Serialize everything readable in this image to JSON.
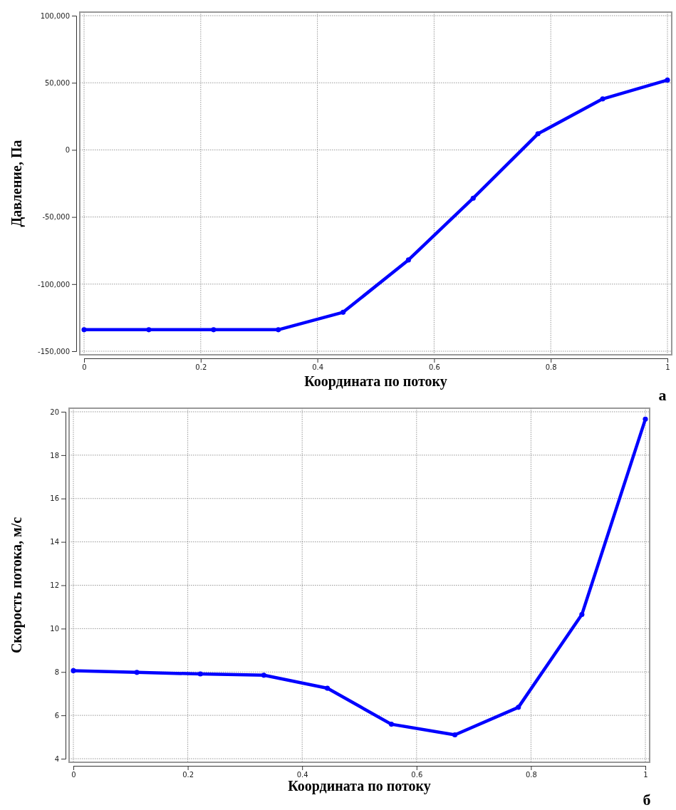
{
  "chart_data": [
    {
      "type": "line",
      "xlabel": "Координата по потоку",
      "ylabel": "Давление, Па",
      "annotations": [
        "а"
      ],
      "x": [
        0,
        0.111,
        0.222,
        0.333,
        0.444,
        0.556,
        0.667,
        0.778,
        0.889,
        1
      ],
      "series": [
        {
          "color": "#0000ff",
          "values": [
            -134000,
            -134000,
            -134000,
            -134000,
            -121000,
            -82000,
            -36000,
            12000,
            38000,
            52000
          ]
        }
      ],
      "xlim": [
        0,
        1
      ],
      "xticks": [
        0,
        0.2,
        0.4,
        0.6,
        0.8,
        1
      ],
      "ylim": [
        -150000,
        100000
      ],
      "yticks": [
        {
          "value": 100000,
          "label": "100,000"
        },
        {
          "value": 50000,
          "label": "50,000"
        },
        0,
        {
          "value": -50000,
          "label": "-50,000"
        },
        {
          "value": -100000,
          "label": "-100,000"
        },
        {
          "value": -150000,
          "label": "-150,000"
        }
      ],
      "grid": true,
      "marker": "circle",
      "line_style": "solid"
    },
    {
      "type": "line",
      "xlabel": "Координата по потоку",
      "ylabel": "Скорость потока, м/с",
      "annotations": [
        "б"
      ],
      "x": [
        0,
        0.111,
        0.222,
        0.333,
        0.444,
        0.556,
        0.667,
        0.778,
        0.889,
        1
      ],
      "series": [
        {
          "color": "#0000ff",
          "values": [
            8.06,
            7.98,
            7.91,
            7.85,
            7.25,
            5.59,
            5.1,
            6.37,
            10.65,
            19.66
          ]
        }
      ],
      "xlim": [
        0,
        1
      ],
      "xticks": [
        0,
        0.2,
        0.4,
        0.6,
        0.8,
        1
      ],
      "ylim": [
        4,
        20
      ],
      "yticks": [
        4,
        6,
        8,
        10,
        12,
        14,
        16,
        18,
        20
      ],
      "grid": true,
      "marker": "circle",
      "line_style": "solid"
    }
  ]
}
